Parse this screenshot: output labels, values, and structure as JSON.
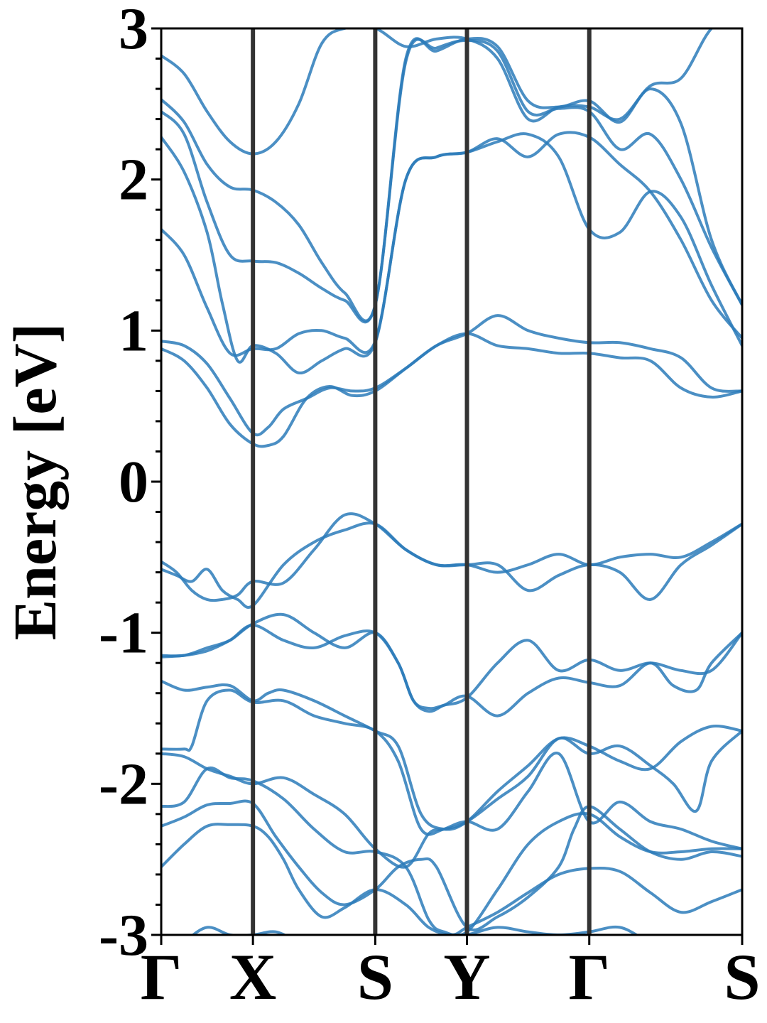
{
  "chart_data": {
    "type": "line",
    "title": "",
    "ylabel": "Energy [eV]",
    "xlabel": "",
    "ylim": [
      -3,
      3
    ],
    "yticks": [
      "3",
      "2",
      "1",
      "0",
      "-1",
      "-2",
      "-3"
    ],
    "ytick_values": [
      3,
      2,
      1,
      0,
      -1,
      -2,
      -3
    ],
    "kpath": {
      "labels": [
        "Γ",
        "X",
        "S",
        "Y",
        "Γ",
        "S"
      ],
      "positions": [
        0,
        0.6,
        1.4,
        2.0,
        2.8,
        3.8
      ]
    },
    "grid": false,
    "legend": "none",
    "band_color": "#2b7bba",
    "divider_color": "#333333",
    "series": [
      {
        "x": [
          0,
          0.15,
          0.3,
          0.45,
          0.6,
          0.75,
          0.9,
          1.05,
          1.2,
          1.4,
          1.6,
          1.75,
          2.0,
          2.2,
          2.4,
          2.6,
          2.8,
          3.0,
          3.2,
          3.4,
          3.6,
          3.8
        ],
        "y": [
          -3.2,
          -3.05,
          -2.95,
          -3.0,
          -3.0,
          -2.98,
          -3.05,
          -3.1,
          -3.15,
          -3.2,
          -3.1,
          -3.05,
          -3.0,
          -2.95,
          -2.98,
          -3.0,
          -2.98,
          -2.95,
          -3.05,
          -3.1,
          -3.15,
          -3.2
        ]
      },
      {
        "x": [
          0,
          0.15,
          0.3,
          0.45,
          0.6,
          0.7,
          0.8,
          0.9,
          1.05,
          1.2,
          1.4,
          1.6,
          1.75,
          1.9,
          2.0,
          2.2,
          2.4,
          2.6,
          2.8,
          3.0,
          3.2,
          3.4,
          3.6,
          3.8
        ],
        "y": [
          -2.55,
          -2.4,
          -2.28,
          -2.27,
          -2.28,
          -2.35,
          -2.5,
          -2.7,
          -2.88,
          -2.82,
          -2.7,
          -2.8,
          -2.95,
          -3.0,
          -2.95,
          -2.85,
          -2.72,
          -2.6,
          -2.56,
          -2.58,
          -2.72,
          -2.85,
          -2.78,
          -2.7
        ]
      },
      {
        "x": [
          0,
          0.15,
          0.3,
          0.45,
          0.6,
          0.75,
          0.9,
          1.05,
          1.2,
          1.4,
          1.55,
          1.7,
          1.8,
          2.0,
          2.2,
          2.4,
          2.6,
          2.7,
          2.8,
          3.0,
          3.2,
          3.4,
          3.6,
          3.8
        ],
        "y": [
          -2.28,
          -2.22,
          -2.14,
          -2.13,
          -2.13,
          -2.35,
          -2.55,
          -2.72,
          -2.8,
          -2.7,
          -2.55,
          -2.5,
          -2.55,
          -2.95,
          -2.88,
          -2.75,
          -2.55,
          -2.3,
          -2.15,
          -2.3,
          -2.45,
          -2.5,
          -2.45,
          -2.48
        ]
      },
      {
        "x": [
          0,
          0.15,
          0.3,
          0.45,
          0.6,
          0.8,
          1.0,
          1.2,
          1.4,
          1.6,
          1.75,
          1.85,
          2.0,
          2.2,
          2.4,
          2.6,
          2.8,
          3.0,
          3.2,
          3.4,
          3.6,
          3.8
        ],
        "y": [
          -2.15,
          -2.12,
          -1.9,
          -1.96,
          -1.98,
          -2.1,
          -2.3,
          -2.45,
          -2.45,
          -2.55,
          -2.9,
          -2.98,
          -2.98,
          -2.7,
          -2.4,
          -2.25,
          -2.2,
          -2.35,
          -2.45,
          -2.45,
          -2.43,
          -2.43
        ]
      },
      {
        "x": [
          0,
          0.15,
          0.3,
          0.45,
          0.6,
          0.8,
          1.0,
          1.2,
          1.4,
          1.6,
          1.75,
          1.85,
          2.0,
          2.2,
          2.4,
          2.6,
          2.8,
          3.0,
          3.2,
          3.4,
          3.6,
          3.8
        ],
        "y": [
          -1.8,
          -1.82,
          -1.9,
          -1.95,
          -2.0,
          -1.96,
          -2.07,
          -2.2,
          -2.43,
          -2.55,
          -2.33,
          -2.3,
          -2.25,
          -2.3,
          -2.05,
          -1.8,
          -2.25,
          -2.12,
          -2.25,
          -2.3,
          -2.38,
          -2.43
        ]
      },
      {
        "x": [
          0,
          0.15,
          0.2,
          0.3,
          0.45,
          0.6,
          0.8,
          1.0,
          1.2,
          1.4,
          1.55,
          1.7,
          1.85,
          2.0,
          2.2,
          2.4,
          2.6,
          2.8,
          3.0,
          3.2,
          3.35,
          3.5,
          3.6,
          3.8
        ],
        "y": [
          -1.77,
          -1.77,
          -1.75,
          -1.45,
          -1.38,
          -1.46,
          -1.45,
          -1.55,
          -1.6,
          -1.65,
          -1.85,
          -2.3,
          -2.3,
          -2.25,
          -2.1,
          -1.95,
          -1.7,
          -1.8,
          -1.75,
          -1.88,
          -2.0,
          -2.18,
          -1.85,
          -1.65
        ]
      },
      {
        "x": [
          0,
          0.15,
          0.3,
          0.45,
          0.6,
          0.7,
          0.8,
          1.0,
          1.2,
          1.4,
          1.55,
          1.7,
          1.85,
          2.0,
          2.2,
          2.4,
          2.6,
          2.8,
          3.0,
          3.2,
          3.4,
          3.6,
          3.8
        ],
        "y": [
          -1.32,
          -1.38,
          -1.36,
          -1.35,
          -1.45,
          -1.4,
          -1.38,
          -1.45,
          -1.55,
          -1.65,
          -1.75,
          -2.2,
          -2.3,
          -2.25,
          -2.05,
          -1.88,
          -1.7,
          -1.75,
          -1.85,
          -1.9,
          -1.72,
          -1.62,
          -1.65
        ]
      },
      {
        "x": [
          0,
          0.15,
          0.3,
          0.45,
          0.6,
          0.8,
          1.0,
          1.2,
          1.4,
          1.55,
          1.65,
          1.75,
          1.85,
          2.0,
          2.2,
          2.4,
          2.6,
          2.8,
          3.0,
          3.2,
          3.35,
          3.5,
          3.6,
          3.8
        ],
        "y": [
          -1.16,
          -1.15,
          -1.12,
          -1.05,
          -0.95,
          -1.05,
          -1.1,
          -1.02,
          -1.0,
          -1.2,
          -1.45,
          -1.52,
          -1.48,
          -1.42,
          -1.55,
          -1.4,
          -1.3,
          -1.33,
          -1.35,
          -1.2,
          -1.35,
          -1.38,
          -1.2,
          -1.0
        ]
      },
      {
        "x": [
          0,
          0.15,
          0.3,
          0.45,
          0.6,
          0.8,
          1.0,
          1.2,
          1.4,
          1.55,
          1.65,
          1.75,
          1.85,
          2.0,
          2.2,
          2.4,
          2.6,
          2.8,
          3.0,
          3.2,
          3.4,
          3.6,
          3.8
        ],
        "y": [
          -1.15,
          -1.15,
          -1.1,
          -1.05,
          -0.94,
          -0.88,
          -1.0,
          -1.1,
          -1.0,
          -1.2,
          -1.45,
          -1.5,
          -1.48,
          -1.43,
          -1.2,
          -1.05,
          -1.25,
          -1.18,
          -1.25,
          -1.2,
          -1.25,
          -1.25,
          -1.0
        ]
      },
      {
        "x": [
          0,
          0.1,
          0.2,
          0.3,
          0.4,
          0.5,
          0.6,
          0.8,
          1.0,
          1.2,
          1.4,
          1.6,
          1.8,
          2.0,
          2.2,
          2.4,
          2.6,
          2.8,
          3.0,
          3.2,
          3.4,
          3.6,
          3.8
        ],
        "y": [
          -0.58,
          -0.62,
          -0.66,
          -0.58,
          -0.72,
          -0.78,
          -0.82,
          -0.55,
          -0.4,
          -0.32,
          -0.28,
          -0.45,
          -0.55,
          -0.55,
          -0.6,
          -0.55,
          -0.48,
          -0.55,
          -0.5,
          -0.48,
          -0.5,
          -0.4,
          -0.28
        ]
      },
      {
        "x": [
          0,
          0.1,
          0.2,
          0.3,
          0.4,
          0.5,
          0.6,
          0.8,
          1.0,
          1.2,
          1.4,
          1.6,
          1.8,
          2.0,
          2.2,
          2.4,
          2.6,
          2.8,
          3.0,
          3.2,
          3.4,
          3.6,
          3.8
        ],
        "y": [
          -0.53,
          -0.6,
          -0.72,
          -0.78,
          -0.78,
          -0.75,
          -0.66,
          -0.67,
          -0.45,
          -0.22,
          -0.28,
          -0.45,
          -0.55,
          -0.55,
          -0.55,
          -0.72,
          -0.62,
          -0.55,
          -0.6,
          -0.78,
          -0.55,
          -0.42,
          -0.28
        ]
      },
      {
        "x": [
          0,
          0.15,
          0.3,
          0.45,
          0.6,
          0.7,
          0.8,
          0.95,
          1.1,
          1.25,
          1.4,
          1.6,
          1.8,
          2.0,
          2.2,
          2.4,
          2.6,
          2.8,
          3.0,
          3.2,
          3.4,
          3.6,
          3.8
        ],
        "y": [
          0.88,
          0.8,
          0.62,
          0.38,
          0.25,
          0.24,
          0.3,
          0.55,
          0.63,
          0.57,
          0.6,
          0.75,
          0.9,
          0.98,
          0.9,
          0.88,
          0.85,
          0.85,
          0.82,
          0.8,
          0.62,
          0.56,
          0.6
        ]
      },
      {
        "x": [
          0,
          0.15,
          0.3,
          0.45,
          0.6,
          0.7,
          0.8,
          0.95,
          1.1,
          1.25,
          1.4,
          1.6,
          1.8,
          2.0,
          2.2,
          2.4,
          2.6,
          2.8,
          3.0,
          3.2,
          3.4,
          3.6,
          3.8
        ],
        "y": [
          0.93,
          0.9,
          0.78,
          0.55,
          0.32,
          0.36,
          0.48,
          0.55,
          0.62,
          0.6,
          0.62,
          0.75,
          0.9,
          0.98,
          1.1,
          1.0,
          0.95,
          0.92,
          0.92,
          0.88,
          0.82,
          0.62,
          0.6
        ]
      },
      {
        "x": [
          0,
          0.15,
          0.3,
          0.45,
          0.6,
          0.75,
          0.9,
          1.05,
          1.2,
          1.4,
          1.6,
          1.8,
          2.0,
          2.2,
          2.4,
          2.6,
          2.8,
          3.0,
          3.2,
          3.4,
          3.6,
          3.8
        ],
        "y": [
          1.67,
          1.5,
          1.15,
          0.85,
          0.88,
          0.88,
          0.98,
          1.0,
          0.95,
          0.93,
          2.0,
          2.15,
          2.18,
          2.25,
          2.3,
          2.15,
          1.67,
          1.65,
          1.92,
          1.75,
          1.3,
          0.9
        ]
      },
      {
        "x": [
          0,
          0.15,
          0.3,
          0.4,
          0.5,
          0.6,
          0.75,
          0.9,
          1.05,
          1.2,
          1.4,
          1.6,
          1.8,
          2.0,
          2.2,
          2.4,
          2.6,
          2.8,
          3.0,
          3.2,
          3.4,
          3.6,
          3.8
        ],
        "y": [
          2.28,
          2.05,
          1.65,
          1.18,
          0.8,
          0.9,
          0.85,
          0.72,
          0.8,
          0.88,
          0.92,
          2.0,
          2.15,
          2.18,
          2.27,
          2.15,
          2.3,
          2.28,
          2.1,
          1.92,
          1.6,
          1.2,
          0.95
        ]
      },
      {
        "x": [
          0,
          0.15,
          0.3,
          0.45,
          0.6,
          0.75,
          0.9,
          1.05,
          1.2,
          1.4,
          1.6,
          1.8,
          2.0,
          2.2,
          2.4,
          2.6,
          2.8,
          3.0,
          3.2,
          3.4,
          3.6,
          3.8
        ],
        "y": [
          2.45,
          2.3,
          1.85,
          1.5,
          1.46,
          1.45,
          1.38,
          1.28,
          1.2,
          1.17,
          2.78,
          2.87,
          2.92,
          2.85,
          2.45,
          2.47,
          2.45,
          2.2,
          2.3,
          2.0,
          1.55,
          1.17
        ]
      },
      {
        "x": [
          0,
          0.15,
          0.3,
          0.45,
          0.6,
          0.75,
          0.9,
          1.05,
          1.2,
          1.4,
          1.6,
          1.8,
          2.0,
          2.2,
          2.4,
          2.6,
          2.8,
          3.0,
          3.2,
          3.4,
          3.6,
          3.8
        ],
        "y": [
          2.53,
          2.38,
          2.1,
          1.95,
          1.93,
          1.85,
          1.7,
          1.45,
          1.25,
          1.17,
          2.8,
          2.85,
          2.93,
          2.88,
          2.52,
          2.48,
          2.52,
          2.38,
          2.6,
          2.37,
          1.6,
          1.17
        ]
      },
      {
        "x": [
          0,
          0.15,
          0.3,
          0.45,
          0.6,
          0.75,
          0.9,
          1.05,
          1.2,
          1.4,
          1.6,
          1.8,
          2.0,
          2.2,
          2.4,
          2.6,
          2.8,
          3.0,
          3.2,
          3.4,
          3.6,
          3.8
        ],
        "y": [
          2.82,
          2.7,
          2.45,
          2.25,
          2.17,
          2.25,
          2.5,
          2.9,
          3.0,
          3.0,
          2.88,
          2.93,
          2.93,
          2.8,
          2.4,
          2.48,
          2.48,
          2.4,
          2.62,
          2.67,
          3.0,
          3.1
        ]
      }
    ]
  }
}
